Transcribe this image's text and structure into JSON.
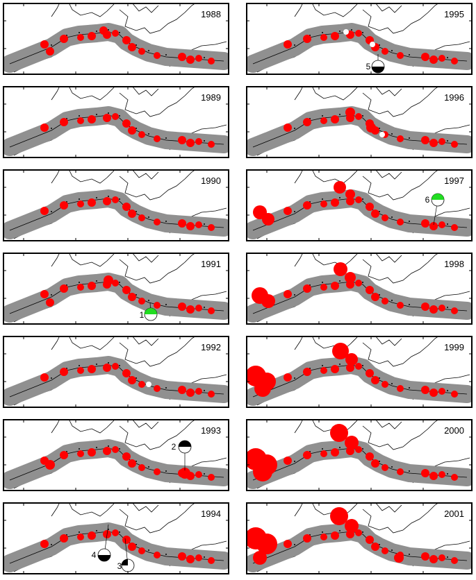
{
  "figure": {
    "panels": [
      {
        "year": "1988",
        "events": []
      },
      {
        "year": "1989",
        "events": []
      },
      {
        "year": "1990",
        "events": []
      },
      {
        "year": "1991",
        "events": [
          {
            "label": "1",
            "mechanism": "green-upper"
          }
        ]
      },
      {
        "year": "1992",
        "events": []
      },
      {
        "year": "1993",
        "events": [
          {
            "label": "2",
            "mechanism": "black-upper"
          }
        ]
      },
      {
        "year": "1994",
        "events": [
          {
            "label": "4",
            "mechanism": "black-lower"
          },
          {
            "label": "3",
            "mechanism": "black-wedge"
          }
        ]
      },
      {
        "year": "1995",
        "events": [
          {
            "label": "5",
            "mechanism": "black-lower"
          }
        ]
      },
      {
        "year": "1996",
        "events": []
      },
      {
        "year": "1997",
        "events": [
          {
            "label": "6",
            "mechanism": "green-upper"
          }
        ]
      },
      {
        "year": "1998",
        "events": []
      },
      {
        "year": "1999",
        "events": []
      },
      {
        "year": "2000",
        "events": []
      },
      {
        "year": "2001",
        "events": []
      }
    ],
    "colors": {
      "zone": "#909090",
      "active": "#ff0000",
      "quiet": "#ffffff",
      "mechanism_black": "#000000",
      "mechanism_green": "#22dd22",
      "coast": "#000000"
    }
  }
}
